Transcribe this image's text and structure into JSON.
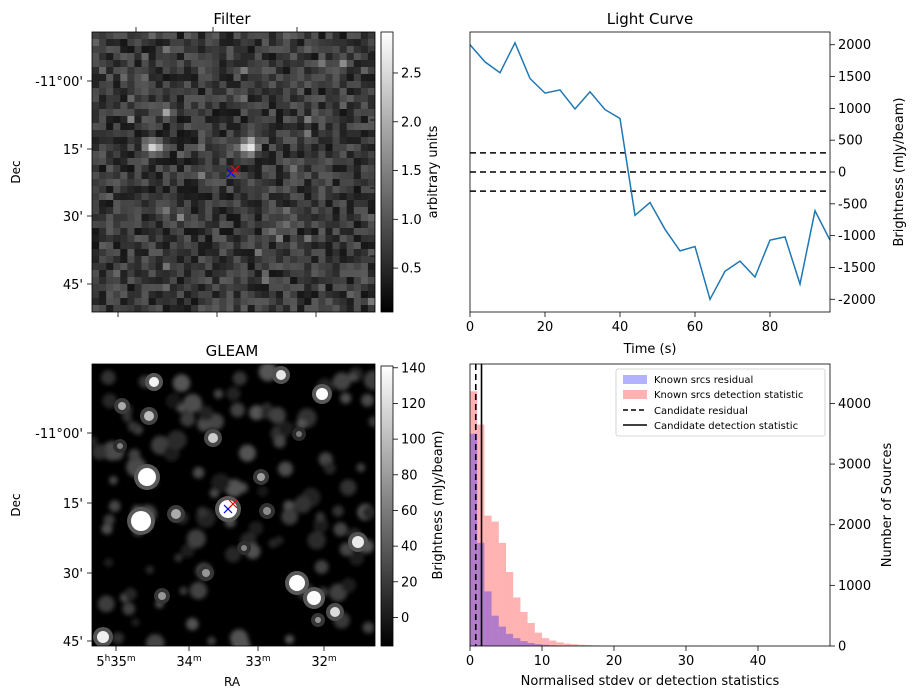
{
  "chart_data": [
    {
      "type": "image",
      "title": "Filter",
      "ylabel": "Dec",
      "yticks": [
        "-11°00'",
        "15'",
        "30'",
        "45'"
      ],
      "colorbar": {
        "label": "arbitrary units",
        "ticks": [
          0.5,
          1.0,
          1.5,
          2.0,
          2.5
        ],
        "tick_labels": [
          "0.5",
          "1.0",
          "1.5",
          "2.0",
          "2.5"
        ],
        "range": [
          0.05,
          2.92
        ],
        "colormap": "gray"
      },
      "markers": [
        {
          "symbol": "x",
          "color": "#0000ff",
          "name": "candidate position"
        },
        {
          "symbol": "x",
          "color": "#ff0000",
          "name": "source position"
        }
      ]
    },
    {
      "type": "line",
      "title": "Light Curve",
      "xlabel": "Time (s)",
      "ylabel": "Brightness (mJy/beam)",
      "xlim": [
        0,
        96
      ],
      "ylim": [
        -2200,
        2200
      ],
      "xticks": [
        0,
        20,
        40,
        60,
        80
      ],
      "yticks": [
        -2000,
        -1500,
        -1000,
        -500,
        0,
        500,
        1000,
        1500,
        2000
      ],
      "series": [
        {
          "name": "light curve",
          "color": "#1f77b4",
          "x": [
            0,
            4,
            8,
            12,
            16,
            20,
            24,
            28,
            32,
            36,
            40,
            44,
            48,
            52,
            56,
            60,
            64,
            68,
            72,
            76,
            80,
            84,
            88,
            92,
            96
          ],
          "y": [
            2000,
            1730,
            1560,
            2030,
            1470,
            1240,
            1290,
            990,
            1260,
            980,
            840,
            -680,
            -480,
            -900,
            -1240,
            -1170,
            -2000,
            -1560,
            -1400,
            -1650,
            -1070,
            -1020,
            -1760,
            -610,
            -1070
          ]
        }
      ],
      "hlines": [
        {
          "y": 300,
          "style": "dashed",
          "color": "#000000"
        },
        {
          "y": 0,
          "style": "dashed",
          "color": "#000000"
        },
        {
          "y": -300,
          "style": "dashed",
          "color": "#000000"
        }
      ]
    },
    {
      "type": "image",
      "title": "GLEAM",
      "xlabel": "RA",
      "ylabel": "Dec",
      "xticks": [
        {
          "base": "5",
          "sup1": "h",
          "mid": "35",
          "sup2": "m"
        },
        {
          "base": "",
          "sup1": "",
          "mid": "34",
          "sup2": "m"
        },
        {
          "base": "",
          "sup1": "",
          "mid": "33",
          "sup2": "m"
        },
        {
          "base": "",
          "sup1": "",
          "mid": "32",
          "sup2": "m"
        }
      ],
      "yticks": [
        "-11°00'",
        "15'",
        "30'",
        "45'"
      ],
      "colorbar": {
        "label": "Brightness (mJy/beam)",
        "ticks": [
          0,
          20,
          40,
          60,
          80,
          100,
          120,
          140
        ],
        "tick_labels": [
          "0",
          "20",
          "40",
          "60",
          "80",
          "100",
          "120",
          "140"
        ],
        "range": [
          -16,
          141
        ],
        "colormap": "gray"
      },
      "markers": [
        {
          "symbol": "x",
          "color": "#0000ff",
          "name": "candidate position"
        },
        {
          "symbol": "x",
          "color": "#ff0000",
          "name": "source position"
        }
      ]
    },
    {
      "type": "histogram",
      "xlabel": "Normalised stdev or detection statistics",
      "ylabel": "Number of Sources",
      "xlim": [
        0,
        50
      ],
      "ylim": [
        0,
        4650
      ],
      "xticks": [
        0,
        10,
        20,
        30,
        40
      ],
      "yticks": [
        0,
        1000,
        2000,
        3000,
        4000
      ],
      "bin_width": 1,
      "series": [
        {
          "name": "Known srcs residual",
          "color": "#0000ff",
          "alpha": 0.3,
          "bins_start": 0,
          "values": [
            3500,
            1700,
            900,
            500,
            320,
            200,
            130,
            80,
            50,
            30,
            20,
            12,
            8,
            5,
            3,
            2,
            1,
            1,
            0,
            0
          ]
        },
        {
          "name": "Known srcs detection statistic",
          "color": "#ff0000",
          "alpha": 0.3,
          "bins_start": 0,
          "values": [
            4200,
            3650,
            2150,
            2050,
            1700,
            1220,
            800,
            560,
            380,
            220,
            130,
            90,
            60,
            40,
            30,
            20,
            15,
            10,
            8,
            6,
            5,
            4,
            3,
            3,
            2,
            2,
            1,
            1,
            1,
            1,
            1,
            1,
            1,
            1,
            0,
            0,
            0,
            0,
            0,
            0,
            0,
            0,
            0,
            0,
            0,
            0,
            0,
            0,
            0,
            0
          ]
        }
      ],
      "vlines": [
        {
          "name": "Candidate residual",
          "x": 0.8,
          "style": "dashed",
          "color": "#000000"
        },
        {
          "name": "Candidate detection statistic",
          "x": 1.6,
          "style": "solid",
          "color": "#000000"
        }
      ]
    }
  ]
}
